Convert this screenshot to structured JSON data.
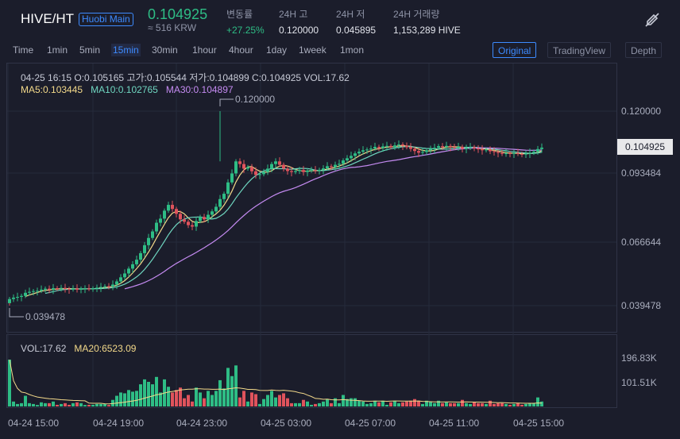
{
  "header": {
    "pair": "HIVE/HT",
    "market_badge": "Huobi Main",
    "last_price": "0.104925",
    "last_price_krw": "≈ 516 KRW",
    "change_label": "변동률",
    "change_value": "+27.25%",
    "high_label": "24H 고",
    "high_value": "0.120000",
    "low_label": "24H 저",
    "low_value": "0.045895",
    "volume_label": "24H 거래량",
    "volume_value": "1,153,289 HIVE",
    "icon": "pen-off-icon"
  },
  "toolbar": {
    "timeframes": [
      "Time",
      "1min",
      "5min",
      "15min",
      "30min",
      "1hour",
      "4hour",
      "1day",
      "1week",
      "1mon"
    ],
    "active_timeframe": "15min",
    "view_buttons": [
      "Original",
      "TradingView",
      "Depth"
    ],
    "active_view": "Original"
  },
  "legend": {
    "ohlc": "04-25 16:15   O:0.105165  고가:0.105544  저가:0.104899  C:0.104925  VOL:17.62",
    "ma5": "MA5:0.103445",
    "ma10": "MA10:0.102765",
    "ma30": "MA30:0.104897",
    "vol": "VOL:17.62",
    "ma20": "MA20:6523.09"
  },
  "colors": {
    "up": "#2ebd85",
    "down": "#e0535c",
    "ma5": "#f3d98a",
    "ma10": "#6fd6c0",
    "ma30": "#c58bf2",
    "accent": "#3d8bff",
    "background": "#1b1d2b"
  },
  "chart_data": {
    "type": "candlestick",
    "interval": "15min",
    "price_axis_ticks": [
      "0.120000",
      "0.093484",
      "0.066644",
      "0.039478"
    ],
    "current_price_tag": "0.104925",
    "volume_axis_ticks": [
      "196.83K",
      "101.51K"
    ],
    "time_axis_ticks": [
      "04-24 15:00",
      "04-24 19:00",
      "04-24 23:00",
      "04-25 03:00",
      "04-25 07:00",
      "04-25 11:00",
      "04-25 15:00"
    ],
    "max_annotation": "0.120000",
    "min_annotation": "0.039478",
    "ylim": [
      0.036,
      0.128
    ],
    "close": [
      0.0422,
      0.0428,
      0.0431,
      0.0435,
      0.0448,
      0.0452,
      0.0455,
      0.0456,
      0.0461,
      0.0465,
      0.0461,
      0.0467,
      0.0465,
      0.0468,
      0.0464,
      0.0462,
      0.0466,
      0.0461,
      0.0465,
      0.0466,
      0.0464,
      0.0466,
      0.0469,
      0.0472,
      0.0475,
      0.0474,
      0.0482,
      0.0495,
      0.0512,
      0.0528,
      0.0548,
      0.0566,
      0.0585,
      0.0612,
      0.0645,
      0.0675,
      0.0702,
      0.0738,
      0.0755,
      0.0788,
      0.0812,
      0.0795,
      0.0775,
      0.0752,
      0.0742,
      0.0728,
      0.0722,
      0.0745,
      0.0762,
      0.0752,
      0.0771,
      0.0785,
      0.0804,
      0.0836,
      0.0858,
      0.0905,
      0.0942,
      0.0992,
      0.0981,
      0.0962,
      0.0968,
      0.0951,
      0.0936,
      0.0939,
      0.0948,
      0.0962,
      0.0981,
      0.0992,
      0.0978,
      0.0962,
      0.0952,
      0.0948,
      0.0952,
      0.0956,
      0.0948,
      0.0954,
      0.0956,
      0.0953,
      0.0957,
      0.0963,
      0.0972,
      0.0968,
      0.0978,
      0.0982,
      0.0996,
      0.1005,
      0.1015,
      0.1025,
      0.1032,
      0.1038,
      0.1041,
      0.1045,
      0.1052,
      0.1047,
      0.1054,
      0.1056,
      0.1051,
      0.1058,
      0.1062,
      0.1057,
      0.1051,
      0.1044,
      0.1035,
      0.1028,
      0.1031,
      0.1038,
      0.1044,
      0.1048,
      0.1055,
      0.1051,
      0.1056,
      0.1052,
      0.1048,
      0.1052,
      0.1044,
      0.1048,
      0.1051,
      0.1046,
      0.1042,
      0.1038,
      0.1041,
      0.1034,
      0.1031,
      0.1027,
      0.1023,
      0.1026,
      0.1024,
      0.1027,
      0.1023,
      0.1021,
      0.1024,
      0.1028,
      0.1032,
      0.1043,
      0.1049
    ],
    "volume_max": 200000
  }
}
